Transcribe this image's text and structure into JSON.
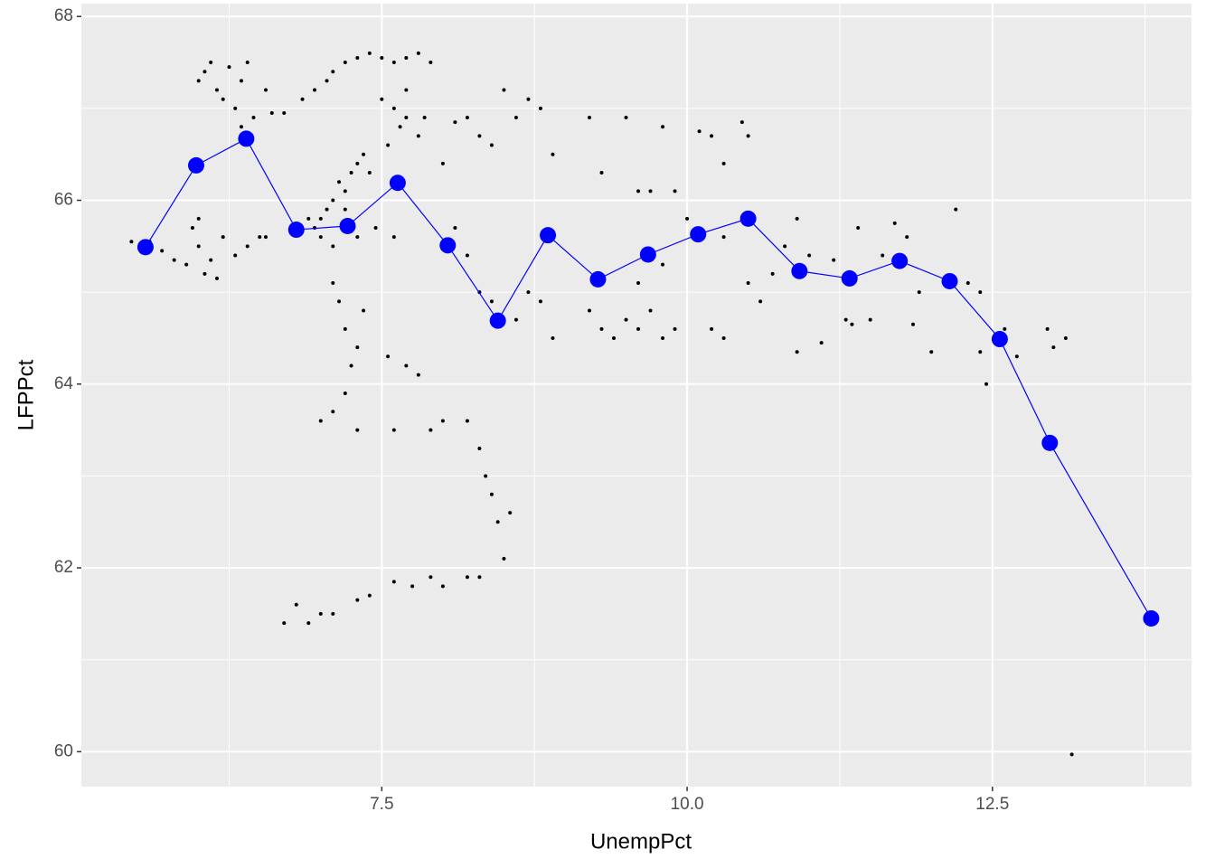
{
  "chart_data": {
    "type": "scatter",
    "x_label": "UnempPct",
    "y_label": "LFPPct",
    "xlim": [
      5.04,
      14.13
    ],
    "ylim": [
      59.62,
      68.14
    ],
    "xticks": [
      7.5,
      {
        "value": 10,
        "label": "10.0"
      },
      12.5
    ],
    "yticks": [
      60,
      62,
      64,
      66,
      68
    ],
    "minor_xticks": [
      6.25,
      8.75,
      11.25,
      13.75
    ],
    "minor_yticks": [
      61,
      63,
      65,
      67
    ],
    "grid": true,
    "series": [
      {
        "mode": "points",
        "color": "#000000",
        "x": [
          5.45,
          5.6,
          5.7,
          5.8,
          5.9,
          5.95,
          6.0,
          6.05,
          6.1,
          6.15,
          6.2,
          6.0,
          6.3,
          6.4,
          6.5,
          6.55,
          6.0,
          6.05,
          6.1,
          6.15,
          6.2,
          6.25,
          6.3,
          6.35,
          6.4,
          6.45,
          6.55,
          6.6,
          6.7,
          6.35,
          6.85,
          6.95,
          7.05,
          7.1,
          7.2,
          7.3,
          7.4,
          7.5,
          7.6,
          7.7,
          7.8,
          7.9,
          7.0,
          7.05,
          7.1,
          7.15,
          7.2,
          7.25,
          7.3,
          7.35,
          7.4,
          7.0,
          6.95,
          6.9,
          7.1,
          7.2,
          7.3,
          7.45,
          7.6,
          7.55,
          7.65,
          7.7,
          7.8,
          7.85,
          7.5,
          7.6,
          7.7,
          7.1,
          7.15,
          7.2,
          7.25,
          7.3,
          7.35,
          7.2,
          7.1,
          7.0,
          7.3,
          7.55,
          7.7,
          7.8,
          7.6,
          7.9,
          8.0,
          8.2,
          8.3,
          8.35,
          8.4,
          8.45,
          8.5,
          8.55,
          8.3,
          8.2,
          8.0,
          7.9,
          7.75,
          7.6,
          7.4,
          7.3,
          7.0,
          6.9,
          6.8,
          6.7,
          7.1,
          8.1,
          8.2,
          8.3,
          8.4,
          8.5,
          8.6,
          8.7,
          8.8,
          8.9,
          8.0,
          8.1,
          8.2,
          8.3,
          8.4,
          8.6,
          8.7,
          8.8,
          8.9,
          9.2,
          9.3,
          9.5,
          9.6,
          9.7,
          9.8,
          9.9,
          9.3,
          9.4,
          9.5,
          9.6,
          9.7,
          9.8,
          9.9,
          9.6,
          9.8,
          9.2,
          10.1,
          10.2,
          10.3,
          10.45,
          10.5,
          10.0,
          10.3,
          10.5,
          10.2,
          10.3,
          10.8,
          10.9,
          11.0,
          10.9,
          11.1,
          10.7,
          10.6,
          11.2,
          11.3,
          11.35,
          11.4,
          11.5,
          11.6,
          11.7,
          11.8,
          11.9,
          11.85,
          12.0,
          12.2,
          12.3,
          12.4,
          12.45,
          12.4,
          12.6,
          12.7,
          12.95,
          13.0,
          13.1,
          13.15,
          13.75
        ],
        "values": [
          65.55,
          65.55,
          65.45,
          65.35,
          65.3,
          65.7,
          65.5,
          65.2,
          65.35,
          65.15,
          65.6,
          65.8,
          65.4,
          65.5,
          65.6,
          65.6,
          67.3,
          67.4,
          67.5,
          67.2,
          67.1,
          67.45,
          67.0,
          67.3,
          67.5,
          66.9,
          67.2,
          66.95,
          66.95,
          66.8,
          67.1,
          67.2,
          67.3,
          67.4,
          67.5,
          67.55,
          67.6,
          67.55,
          67.5,
          67.55,
          67.6,
          67.5,
          65.8,
          65.9,
          66.0,
          66.2,
          66.1,
          66.3,
          66.4,
          66.5,
          66.3,
          65.6,
          65.7,
          65.8,
          65.5,
          65.9,
          65.6,
          65.7,
          65.6,
          66.6,
          66.8,
          66.9,
          66.7,
          66.9,
          67.1,
          67.0,
          67.2,
          65.1,
          64.9,
          64.6,
          64.2,
          64.4,
          64.8,
          63.9,
          63.7,
          63.6,
          63.5,
          64.3,
          64.2,
          64.1,
          63.5,
          63.5,
          63.6,
          63.6,
          63.3,
          63.0,
          62.8,
          62.5,
          62.1,
          62.6,
          61.9,
          61.9,
          61.8,
          61.9,
          61.8,
          61.85,
          61.7,
          61.65,
          61.5,
          61.4,
          61.6,
          61.4,
          61.5,
          66.85,
          66.9,
          66.7,
          66.6,
          67.2,
          66.9,
          67.1,
          67.0,
          66.5,
          66.4,
          65.7,
          65.4,
          65.0,
          64.9,
          64.7,
          65.0,
          64.9,
          64.5,
          66.9,
          66.3,
          66.9,
          66.1,
          66.1,
          66.8,
          66.1,
          64.6,
          64.5,
          64.7,
          64.6,
          64.8,
          64.5,
          64.6,
          65.1,
          65.3,
          64.8,
          66.75,
          66.7,
          66.4,
          66.85,
          66.7,
          65.8,
          65.6,
          65.1,
          64.6,
          64.5,
          65.5,
          65.8,
          65.4,
          64.35,
          64.45,
          65.2,
          64.9,
          65.35,
          64.7,
          64.65,
          65.7,
          64.7,
          65.4,
          65.75,
          65.6,
          65.0,
          64.65,
          64.35,
          65.9,
          65.1,
          64.35,
          64.0,
          65.0,
          64.6,
          64.3,
          64.6,
          64.4,
          64.5,
          59.97,
          61.45
        ]
      },
      {
        "mode": "line+points",
        "color": "#0000ff",
        "x": [
          5.565,
          5.98,
          6.39,
          6.8,
          7.22,
          7.63,
          8.04,
          8.45,
          8.86,
          9.27,
          9.68,
          10.09,
          10.5,
          10.92,
          11.33,
          11.74,
          12.15,
          12.56,
          12.97,
          13.8
        ],
        "values": [
          65.49,
          66.38,
          66.67,
          65.68,
          65.72,
          66.19,
          65.51,
          64.69,
          65.62,
          65.14,
          65.41,
          65.63,
          65.8,
          65.23,
          65.15,
          65.34,
          65.12,
          64.49,
          63.36,
          61.45
        ]
      }
    ]
  }
}
